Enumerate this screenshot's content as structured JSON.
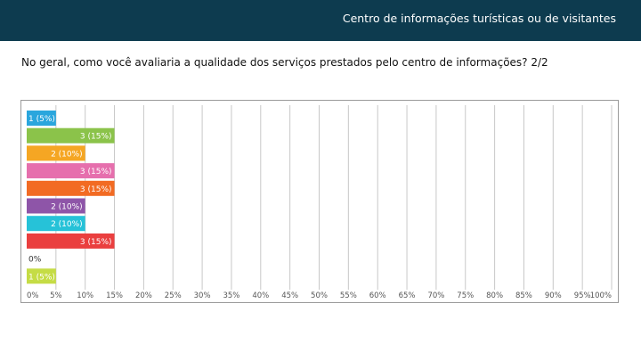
{
  "header": {
    "title": "Centro de informações turísticas ou de visitantes",
    "bg_color": "#0d3b4f"
  },
  "question": {
    "text": "No geral, como você avaliaria a qualidade dos serviços prestados pelo centro de informações? 2/2"
  },
  "chart_data": {
    "type": "bar",
    "orientation": "horizontal",
    "title": "",
    "xlabel": "",
    "ylabel": "",
    "xlim": [
      0,
      100
    ],
    "grid": true,
    "legend": "none",
    "ticks": [
      "0%",
      "5%",
      "10%",
      "15%",
      "20%",
      "25%",
      "30%",
      "35%",
      "40%",
      "45%",
      "50%",
      "55%",
      "60%",
      "65%",
      "70%",
      "75%",
      "80%",
      "85%",
      "90%",
      "95%",
      "100%"
    ],
    "bars": [
      {
        "percent": 5,
        "label": "1 (5%)",
        "color": "#2aa6dd"
      },
      {
        "percent": 15,
        "label": "3 (15%)",
        "color": "#8bc34a"
      },
      {
        "percent": 10,
        "label": "2 (10%)",
        "color": "#f5a623"
      },
      {
        "percent": 15,
        "label": "3 (15%)",
        "color": "#e66fad"
      },
      {
        "percent": 15,
        "label": "3 (15%)",
        "color": "#f26b23"
      },
      {
        "percent": 10,
        "label": "2 (10%)",
        "color": "#8e55a8"
      },
      {
        "percent": 10,
        "label": "2 (10%)",
        "color": "#26c2d8"
      },
      {
        "percent": 15,
        "label": "3 (15%)",
        "color": "#ea3f3f"
      },
      {
        "percent": 0,
        "label": "0%",
        "color": "#bdbdbd"
      },
      {
        "percent": 5,
        "label": "1 (5%)",
        "color": "#c5dc45"
      }
    ]
  }
}
